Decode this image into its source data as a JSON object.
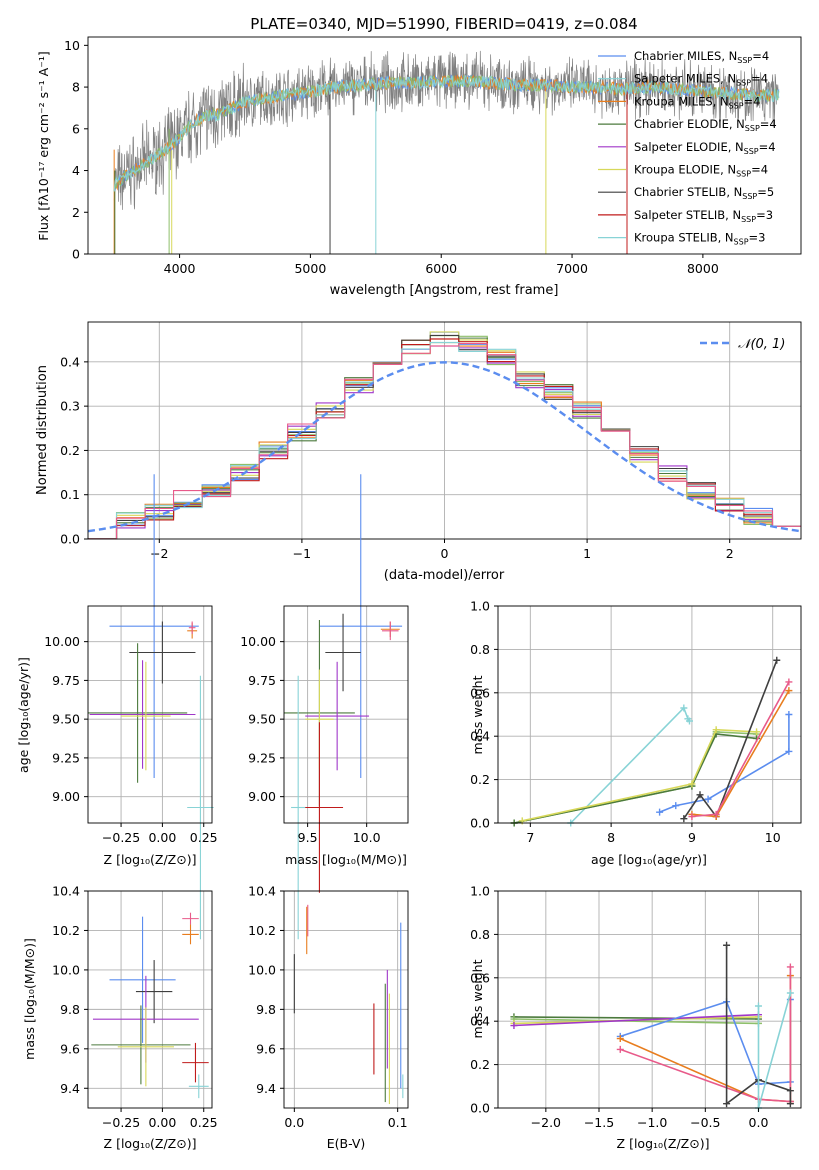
{
  "colors": {
    "series": [
      "#5B8DEF",
      "#8EBF6B",
      "#E87D1E",
      "#4C7A3D",
      "#A037C9",
      "#D7D85A",
      "#3F3F3F",
      "#C01B1B",
      "#88D3D6",
      "#E85A8A"
    ],
    "spectrum_data": "#808080",
    "gaussian": "#5B8DEF"
  },
  "charts": {
    "spectrum": {
      "title": "PLATE=0340, MJD=51990, FIBERID=0419, z=0.084",
      "xlabel": "wavelength [Angstrom, rest frame]",
      "ylabel": "Flux [fλ10⁻¹⁷ erg cm⁻² s⁻¹ A⁻¹]",
      "x_ticks": [
        "4000",
        "5000",
        "6000",
        "7000",
        "8000"
      ],
      "y_ticks": [
        "0",
        "2",
        "4",
        "6",
        "8",
        "10"
      ],
      "legend": [
        "Chabrier MILES, N_SSP=4",
        "Salpeter MILES, N_SSP=4",
        "Kroupa MILES, N_SSP=4",
        "Chabrier ELODIE, N_SSP=4",
        "Salpeter ELODIE, N_SSP=4",
        "Kroupa ELODIE, N_SSP=4",
        "Chabrier STELIB, N_SSP=5",
        "Salpeter STELIB, N_SSP=3",
        "Kroupa STELIB, N_SSP=3"
      ]
    },
    "residuals": {
      "xlabel": "(data-model)/error",
      "ylabel": "Normed distribution",
      "legend": "𝒩(0, 1)",
      "x_ticks": [
        "−2",
        "−1",
        "0",
        "1",
        "2"
      ],
      "y_ticks": [
        "0.0",
        "0.1",
        "0.2",
        "0.3",
        "0.4"
      ]
    },
    "age_Z": {
      "xlabel": "Z [log₁₀(Z/Z⊙)]",
      "ylabel": "age  [log₁₀(age/yr)]",
      "x_ticks": [
        "−0.25",
        "0.00",
        "0.25"
      ],
      "y_ticks": [
        "9.00",
        "9.25",
        "9.50",
        "9.75",
        "10.00"
      ]
    },
    "age_mass": {
      "xlabel": "mass [log₁₀(M/M⊙)]",
      "x_ticks": [
        "9.5",
        "10.0"
      ],
      "y_ticks": [
        "9.00",
        "9.25",
        "9.50",
        "9.75",
        "10.00"
      ]
    },
    "weight_age": {
      "xlabel": "age  [log₁₀(age/yr)]",
      "ylabel": "mass weight",
      "x_ticks": [
        "7",
        "8",
        "9",
        "10"
      ],
      "y_ticks": [
        "0.0",
        "0.2",
        "0.4",
        "0.6",
        "0.8",
        "1.0"
      ]
    },
    "mass_Z": {
      "xlabel": "Z [log₁₀(Z/Z⊙)]",
      "ylabel": "mass [log₁₀(M/M⊙)]",
      "x_ticks": [
        "−0.25",
        "0.00",
        "0.25"
      ],
      "y_ticks": [
        "9.4",
        "9.6",
        "9.8",
        "10.0",
        "10.2",
        "10.4"
      ]
    },
    "mass_ebv": {
      "xlabel": "E(B-V)",
      "x_ticks": [
        "0.0",
        "0.1"
      ],
      "y_ticks": [
        "9.4",
        "9.6",
        "9.8",
        "10.0",
        "10.2",
        "10.4"
      ]
    },
    "weight_Z": {
      "xlabel": "Z [log₁₀(Z/Z⊙)]",
      "ylabel": "mass weight",
      "x_ticks": [
        "−2.0",
        "−1.5",
        "−1.0",
        "−0.5",
        "0.0"
      ],
      "y_ticks": [
        "0.0",
        "0.2",
        "0.4",
        "0.6",
        "0.8",
        "1.0"
      ]
    }
  },
  "chart_data": [
    {
      "type": "line",
      "title": "PLATE=0340, MJD=51990, FIBERID=0419, z=0.084",
      "xlabel": "wavelength [Angstrom, rest frame]",
      "ylabel": "Flux [fλ10⁻¹⁷ erg cm⁻² s⁻¹ A⁻¹]",
      "xlim": [
        3300,
        8750
      ],
      "ylim": [
        0,
        10.4
      ],
      "continuum": {
        "x": [
          3500,
          3600,
          3700,
          3800,
          3900,
          4000,
          4100,
          4200,
          4300,
          4400,
          4500,
          4600,
          4700,
          4800,
          4900,
          5000,
          5200,
          5400,
          5600,
          5800,
          6000,
          6200,
          6400,
          6600,
          6800,
          7000,
          7200,
          7400,
          7600,
          7800,
          8000,
          8200,
          8400,
          8600
        ],
        "y": [
          3.3,
          3.8,
          4.2,
          4.6,
          5.0,
          5.6,
          6.3,
          6.6,
          6.7,
          7.0,
          7.3,
          7.4,
          7.5,
          7.6,
          7.7,
          7.8,
          8.0,
          8.1,
          8.2,
          8.2,
          8.3,
          8.3,
          8.2,
          8.1,
          8.1,
          8.0,
          8.0,
          7.9,
          8.0,
          7.9,
          7.8,
          7.7,
          7.6,
          7.6
        ]
      },
      "legend_position": "upper right",
      "grid": false
    },
    {
      "type": "histogram",
      "xlabel": "(data-model)/error",
      "ylabel": "Normed distribution",
      "xlim": [
        -2.5,
        2.5
      ],
      "ylim": [
        0,
        0.49
      ],
      "bin_edges": [
        -2.5,
        -2.3,
        -2.1,
        -1.9,
        -1.7,
        -1.5,
        -1.3,
        -1.1,
        -0.9,
        -0.7,
        -0.5,
        -0.3,
        -0.1,
        0.1,
        0.3,
        0.5,
        0.7,
        0.9,
        1.1,
        1.3,
        1.5,
        1.7,
        1.9,
        2.1,
        2.3,
        2.5
      ],
      "counts": [
        0.02,
        0.04,
        0.06,
        0.09,
        0.11,
        0.15,
        0.2,
        0.24,
        0.29,
        0.35,
        0.39,
        0.43,
        0.45,
        0.44,
        0.41,
        0.36,
        0.33,
        0.29,
        0.24,
        0.19,
        0.15,
        0.11,
        0.08,
        0.05,
        0.03
      ],
      "gaussian_legend": "𝒩(0, 1)",
      "legend_position": "upper right",
      "grid": true
    },
    {
      "type": "scatter",
      "xlabel": "Z [log₁₀(Z/Z⊙)]",
      "ylabel": "age  [log₁₀(age/yr)]",
      "xlim": [
        -0.45,
        0.3
      ],
      "ylim": [
        8.83,
        10.23
      ],
      "points": [
        {
          "x": -0.05,
          "y": 10.1,
          "xerr": 0.27,
          "yerr": 0.98,
          "c": 0
        },
        {
          "x": 0.18,
          "y": 10.07,
          "xerr": 0.03,
          "yerr": 0.05,
          "c": 2
        },
        {
          "x": 0.18,
          "y": 10.09,
          "xerr": 0.02,
          "yerr": 0.04,
          "c": 9
        },
        {
          "x": 0.0,
          "y": 9.93,
          "xerr": 0.2,
          "yerr": 0.2,
          "c": 6
        },
        {
          "x": -0.15,
          "y": 9.54,
          "xerr": 0.3,
          "yerr": 0.45,
          "c": 3
        },
        {
          "x": -0.12,
          "y": 9.53,
          "xerr": 0.32,
          "yerr": 0.35,
          "c": 4
        },
        {
          "x": -0.1,
          "y": 9.52,
          "xerr": 0.15,
          "yerr": 0.35,
          "c": 5
        },
        {
          "x": 0.23,
          "y": 8.93,
          "xerr": 0.08,
          "yerr": 0.85,
          "c": 8
        }
      ],
      "grid": true
    },
    {
      "type": "scatter",
      "xlabel": "mass [log₁₀(M/M⊙)]",
      "xlim": [
        9.3,
        10.35
      ],
      "ylim": [
        8.83,
        10.23
      ],
      "points": [
        {
          "x": 9.95,
          "y": 10.1,
          "xerr": 0.35,
          "yerr": 0.98,
          "c": 0
        },
        {
          "x": 10.2,
          "y": 10.08,
          "xerr": 0.08,
          "yerr": 0.05,
          "c": 2
        },
        {
          "x": 10.2,
          "y": 10.07,
          "xerr": 0.07,
          "yerr": 0.06,
          "c": 9
        },
        {
          "x": 9.8,
          "y": 9.93,
          "xerr": 0.15,
          "yerr": 0.25,
          "c": 6
        },
        {
          "x": 9.6,
          "y": 9.54,
          "xerr": 0.3,
          "yerr": 0.6,
          "c": 3
        },
        {
          "x": 9.75,
          "y": 9.52,
          "xerr": 0.27,
          "yerr": 0.35,
          "c": 4
        },
        {
          "x": 9.6,
          "y": 9.5,
          "xerr": 0.12,
          "yerr": 0.32,
          "c": 5
        },
        {
          "x": 9.6,
          "y": 8.93,
          "xerr": 0.2,
          "yerr": 0.55,
          "c": 7
        },
        {
          "x": 9.42,
          "y": 8.93,
          "xerr": 0.06,
          "yerr": 0.85,
          "c": 8
        }
      ],
      "grid": true
    },
    {
      "type": "line",
      "xlabel": "age  [log₁₀(age/yr)]",
      "ylabel": "mass weight",
      "xlim": [
        6.6,
        10.35
      ],
      "ylim": [
        0,
        1.0
      ],
      "series": [
        {
          "c": 0,
          "x": [
            8.6,
            8.8,
            9.2,
            10.2,
            10.2
          ],
          "y": [
            0.05,
            0.08,
            0.11,
            0.33,
            0.5
          ]
        },
        {
          "c": 8,
          "x": [
            7.5,
            8.9,
            8.95,
            8.97
          ],
          "y": [
            0.0,
            0.53,
            0.48,
            0.47
          ]
        },
        {
          "c": 1,
          "x": [
            6.8,
            9.0,
            9.3,
            9.8
          ],
          "y": [
            0.0,
            0.17,
            0.42,
            0.41
          ]
        },
        {
          "c": 3,
          "x": [
            6.8,
            9.0,
            9.3,
            9.8
          ],
          "y": [
            0.0,
            0.17,
            0.41,
            0.39
          ]
        },
        {
          "c": 5,
          "x": [
            6.9,
            9.0,
            9.3,
            9.8
          ],
          "y": [
            0.01,
            0.18,
            0.43,
            0.42
          ]
        },
        {
          "c": 6,
          "x": [
            8.9,
            9.1,
            9.3,
            10.05
          ],
          "y": [
            0.02,
            0.13,
            0.03,
            0.75
          ]
        },
        {
          "c": 2,
          "x": [
            9.0,
            9.3,
            10.2
          ],
          "y": [
            0.04,
            0.03,
            0.61
          ]
        },
        {
          "c": 9,
          "x": [
            9.0,
            9.3,
            10.2
          ],
          "y": [
            0.03,
            0.04,
            0.65
          ]
        }
      ],
      "grid": true
    },
    {
      "type": "scatter",
      "xlabel": "Z [log₁₀(Z/Z⊙)]",
      "ylabel": "mass [log₁₀(M/M⊙)]",
      "xlim": [
        -0.45,
        0.3
      ],
      "ylim": [
        9.3,
        10.4
      ],
      "points": [
        {
          "x": -0.12,
          "y": 9.95,
          "xerr": 0.2,
          "yerr": 0.32,
          "c": 0
        },
        {
          "x": 0.17,
          "y": 10.26,
          "xerr": 0.05,
          "yerr": 0.03,
          "c": 9
        },
        {
          "x": 0.17,
          "y": 10.18,
          "xerr": 0.05,
          "yerr": 0.05,
          "c": 2
        },
        {
          "x": -0.05,
          "y": 9.89,
          "xerr": 0.11,
          "yerr": 0.16,
          "c": 6
        },
        {
          "x": -0.1,
          "y": 9.75,
          "xerr": 0.32,
          "yerr": 0.22,
          "c": 4
        },
        {
          "x": -0.13,
          "y": 9.62,
          "xerr": 0.3,
          "yerr": 0.2,
          "c": 3
        },
        {
          "x": -0.1,
          "y": 9.61,
          "xerr": 0.17,
          "yerr": 0.2,
          "c": 5
        },
        {
          "x": 0.2,
          "y": 9.53,
          "xerr": 0.08,
          "yerr": 0.1,
          "c": 7
        },
        {
          "x": 0.22,
          "y": 9.41,
          "xerr": 0.06,
          "yerr": 0.06,
          "c": 8
        }
      ],
      "grid": true
    },
    {
      "type": "scatter",
      "xlabel": "E(B-V)",
      "xlim": [
        -0.01,
        0.11
      ],
      "ylim": [
        9.3,
        10.4
      ],
      "points": [
        {
          "x": 0.0,
          "y": 9.93,
          "yerr": 0.15,
          "c": 6
        },
        {
          "x": 0.013,
          "y": 10.25,
          "yerr": 0.08,
          "c": 9
        },
        {
          "x": 0.012,
          "y": 10.2,
          "yerr": 0.12,
          "c": 2
        },
        {
          "x": 0.09,
          "y": 9.75,
          "yerr": 0.25,
          "c": 4
        },
        {
          "x": 0.088,
          "y": 9.63,
          "yerr": 0.3,
          "c": 3
        },
        {
          "x": 0.092,
          "y": 9.6,
          "yerr": 0.28,
          "c": 5
        },
        {
          "x": 0.077,
          "y": 9.65,
          "yerr": 0.18,
          "c": 7
        },
        {
          "x": 0.103,
          "y": 9.82,
          "yerr": 0.42,
          "c": 0
        },
        {
          "x": 0.105,
          "y": 9.41,
          "yerr": 0.06,
          "c": 8
        }
      ],
      "grid": true
    },
    {
      "type": "line",
      "xlabel": "Z [log₁₀(Z/Z⊙)]",
      "ylabel": "mass weight",
      "xlim": [
        -2.45,
        0.4
      ],
      "ylim": [
        0,
        1.0
      ],
      "series": [
        {
          "c": 3,
          "x": [
            -2.3,
            0.0
          ],
          "y": [
            0.42,
            0.41
          ]
        },
        {
          "c": 1,
          "x": [
            -2.3,
            0.0
          ],
          "y": [
            0.41,
            0.39
          ]
        },
        {
          "c": 5,
          "x": [
            -2.3,
            0.0
          ],
          "y": [
            0.39,
            0.42
          ]
        },
        {
          "c": 4,
          "x": [
            -2.3,
            0.0
          ],
          "y": [
            0.38,
            0.43
          ]
        },
        {
          "c": 0,
          "x": [
            -1.3,
            -0.3,
            0.0,
            0.3,
            0.3
          ],
          "y": [
            0.33,
            0.49,
            0.11,
            0.12,
            0.5
          ]
        },
        {
          "c": 2,
          "x": [
            -1.3,
            0.0,
            0.3,
            0.3
          ],
          "y": [
            0.32,
            0.04,
            0.03,
            0.61
          ]
        },
        {
          "c": 9,
          "x": [
            -1.3,
            0.0,
            0.3,
            0.3
          ],
          "y": [
            0.27,
            0.04,
            0.03,
            0.65
          ]
        },
        {
          "c": 6,
          "x": [
            -0.3,
            -0.3,
            0.0,
            0.3,
            0.3
          ],
          "y": [
            0.75,
            0.02,
            0.13,
            0.08,
            0.02
          ]
        },
        {
          "c": 8,
          "x": [
            0.0,
            0.0,
            0.3
          ],
          "y": [
            0.47,
            0.0,
            0.53
          ]
        }
      ],
      "grid": true
    }
  ]
}
